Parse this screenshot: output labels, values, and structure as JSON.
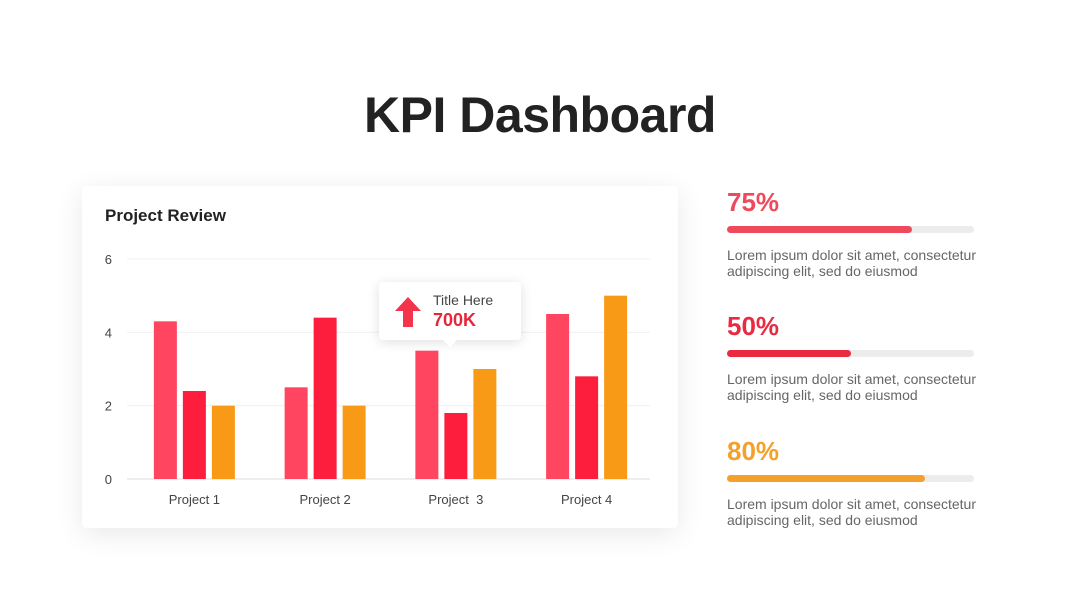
{
  "page": {
    "title": "KPI Dashboard"
  },
  "chart_card": {
    "title": "Project Review",
    "tooltip": {
      "label": "Title Here",
      "value": "700K",
      "icon": "arrow-up-icon"
    }
  },
  "chart_data": {
    "type": "bar",
    "title": "Project Review",
    "categories": [
      "Project 1",
      "Project 2",
      "Project  3",
      "Project 4"
    ],
    "series": [
      {
        "values": [
          4.3,
          2.5,
          3.5,
          4.5
        ],
        "color": "#ff4560"
      },
      {
        "values": [
          2.4,
          4.4,
          1.8,
          2.8
        ],
        "color": "#fc1e3c"
      },
      {
        "values": [
          2.0,
          2.0,
          3.0,
          5.0
        ],
        "color": "#f99a17"
      }
    ],
    "ylim": [
      0,
      6
    ],
    "yticks": [
      0,
      2,
      4,
      6
    ],
    "grid": true,
    "xlabel": "",
    "ylabel": ""
  },
  "kpis": [
    {
      "percent": "75%",
      "value": 0.75,
      "color": "#ee4a5c",
      "description": "Lorem ipsum dolor sit amet, consectetur adipiscing elit, sed do eiusmod"
    },
    {
      "percent": "50%",
      "value": 0.5,
      "color": "#ea2a40",
      "description": "Lorem ipsum dolor sit amet, consectetur adipiscing elit, sed do eiusmod"
    },
    {
      "percent": "80%",
      "value": 0.8,
      "color": "#f3a12a",
      "description": "Lorem ipsum dolor sit amet, consectetur adipiscing elit, sed do eiusmod"
    }
  ]
}
